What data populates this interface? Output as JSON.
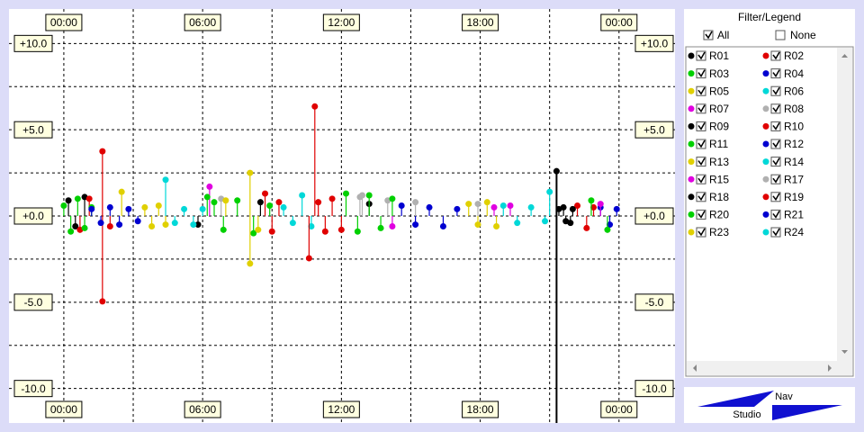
{
  "chart_data": {
    "type": "scatter",
    "xlim": [
      -2.37,
      26.42
    ],
    "ylim": [
      -12,
      12
    ],
    "xticks": [
      {
        "value": 0,
        "label": "00:00"
      },
      {
        "value": 6,
        "label": "06:00"
      },
      {
        "value": 12,
        "label": "12:00"
      },
      {
        "value": 18,
        "label": "18:00"
      },
      {
        "value": 24,
        "label": "00:00"
      }
    ],
    "yticks": [
      {
        "value": 10,
        "label": "+10.0"
      },
      {
        "value": 5,
        "label": "+5.0"
      },
      {
        "value": 0,
        "label": "+0.0"
      },
      {
        "value": -5,
        "label": "-5.0"
      },
      {
        "value": -10,
        "label": "-10.0"
      }
    ],
    "x_grid": [
      3,
      9,
      15,
      21
    ],
    "y_grid": [
      7.5,
      2.5,
      -2.5,
      -7.5
    ],
    "grid": true,
    "cursor_x": 21.3,
    "series": [
      {
        "name": "R01",
        "color": "#000000",
        "x": [
          0.2,
          0.5,
          0.9,
          5.8,
          13.2
        ],
        "values": [
          0.9,
          -0.6,
          1.1,
          -0.5,
          0.7
        ]
      },
      {
        "name": "R02",
        "color": "#e00000",
        "x": [
          0.7,
          1.1,
          1.67,
          1.67,
          2.0
        ],
        "values": [
          -0.8,
          1.0,
          3.75,
          -4.95,
          -0.6
        ]
      },
      {
        "name": "R03",
        "color": "#00d000",
        "x": [
          0.0,
          0.3,
          0.6,
          0.9,
          1.2,
          6.5
        ],
        "values": [
          0.6,
          -0.9,
          1.0,
          -0.7,
          0.5,
          0.8
        ]
      },
      {
        "name": "R04",
        "color": "#0000d0",
        "x": [
          1.2,
          1.6,
          2.0,
          2.4,
          2.8,
          3.2
        ],
        "values": [
          0.4,
          -0.4,
          0.5,
          -0.5,
          0.4,
          -0.3
        ]
      },
      {
        "name": "R05",
        "color": "#e0d000",
        "x": [
          2.5,
          3.5,
          3.8,
          4.1,
          4.4
        ],
        "values": [
          1.4,
          0.5,
          -0.6,
          0.6,
          -0.5
        ]
      },
      {
        "name": "R06",
        "color": "#00d8d8",
        "x": [
          4.4,
          4.8,
          5.2,
          5.6,
          6.0
        ],
        "values": [
          2.1,
          -0.4,
          0.4,
          -0.5,
          0.4
        ]
      },
      {
        "name": "R07",
        "color": "#e000e0",
        "x": [
          6.3,
          14.2,
          18.6
        ],
        "values": [
          1.7,
          -0.6,
          0.5
        ]
      },
      {
        "name": "R08",
        "color": "#b0b0b0",
        "x": [
          6.8,
          12.8,
          14.0
        ],
        "values": [
          1.0,
          1.1,
          0.9
        ]
      },
      {
        "name": "R09",
        "color": "#000000",
        "x": [
          8.5,
          21.3,
          21.6,
          21.9
        ],
        "values": [
          0.8,
          2.6,
          0.5,
          -0.4
        ]
      },
      {
        "name": "R10",
        "color": "#e00000",
        "x": [
          8.7,
          9.0,
          9.3,
          22.2,
          22.6,
          22.9
        ],
        "values": [
          1.3,
          -0.9,
          0.8,
          0.6,
          -0.7,
          0.5
        ]
      },
      {
        "name": "R11",
        "color": "#00d000",
        "x": [
          6.2,
          6.9,
          7.5,
          8.2,
          8.9
        ],
        "values": [
          1.1,
          -0.8,
          0.9,
          -1.0,
          0.6
        ]
      },
      {
        "name": "R12",
        "color": "#0000d0",
        "x": [
          23.2,
          23.6,
          23.9
        ],
        "values": [
          0.5,
          -0.5,
          0.4
        ]
      },
      {
        "name": "R13",
        "color": "#e0d000",
        "x": [
          7.0,
          8.05,
          8.05,
          8.4
        ],
        "values": [
          0.9,
          2.5,
          -2.76,
          -0.8
        ]
      },
      {
        "name": "R14",
        "color": "#00d8d8",
        "x": [
          9.5,
          9.9,
          10.3,
          10.7
        ],
        "values": [
          0.5,
          -0.4,
          1.2,
          -0.6
        ]
      },
      {
        "name": "R15",
        "color": "#e000e0",
        "x": [
          19.3,
          23.2
        ],
        "values": [
          0.6,
          0.7
        ]
      },
      {
        "name": "R17",
        "color": "#b0b0b0",
        "x": [
          12.9,
          15.2,
          17.9
        ],
        "values": [
          1.2,
          0.8,
          0.7
        ]
      },
      {
        "name": "R18",
        "color": "#000000",
        "x": [
          21.4,
          21.7,
          22.0
        ],
        "values": [
          0.4,
          -0.3,
          0.4
        ]
      },
      {
        "name": "R19",
        "color": "#e00000",
        "x": [
          10.85,
          10.6,
          11.0,
          11.3,
          11.6,
          12.0
        ],
        "values": [
          6.35,
          -2.45,
          0.8,
          -0.9,
          1.0,
          -0.8
        ]
      },
      {
        "name": "R20",
        "color": "#00d000",
        "x": [
          12.2,
          12.7,
          13.2,
          13.7,
          14.2,
          22.8,
          23.5
        ],
        "values": [
          1.3,
          -0.9,
          1.2,
          -0.7,
          1.0,
          0.9,
          -0.8
        ]
      },
      {
        "name": "R21",
        "color": "#0000d0",
        "x": [
          14.6,
          15.2,
          15.8,
          16.4,
          17.0
        ],
        "values": [
          0.6,
          -0.5,
          0.5,
          -0.6,
          0.4
        ]
      },
      {
        "name": "R23",
        "color": "#e0d000",
        "x": [
          17.5,
          17.9,
          18.3,
          18.7
        ],
        "values": [
          0.7,
          -0.5,
          0.8,
          -0.6
        ]
      },
      {
        "name": "R24",
        "color": "#00d8d8",
        "x": [
          19.0,
          19.6,
          20.2,
          20.8,
          21.0
        ],
        "values": [
          0.6,
          -0.4,
          0.5,
          -0.3,
          1.4
        ]
      }
    ]
  },
  "filter": {
    "title": "Filter/Legend",
    "all": "All",
    "none": "None"
  },
  "logo": {
    "top": "Nav",
    "bottom": "Studio"
  }
}
